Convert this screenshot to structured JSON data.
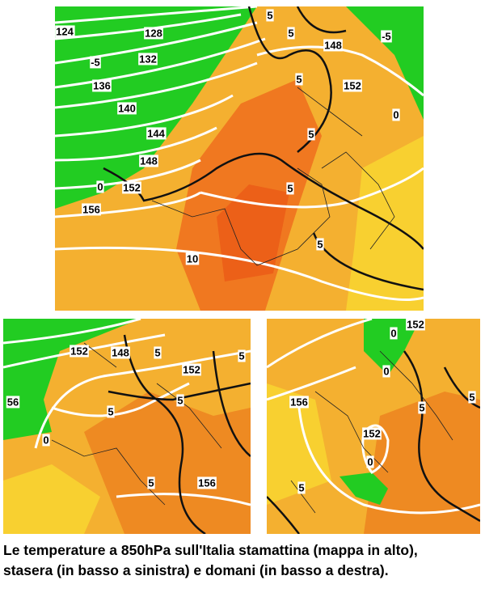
{
  "maps": [
    {
      "labels": [
        "124",
        "128",
        "132",
        "136",
        "140",
        "144",
        "148",
        "152",
        "156",
        "148",
        "152",
        "5",
        "5",
        "5",
        "5",
        "5",
        "5",
        "0",
        "0",
        "10",
        "-5",
        "-5"
      ]
    },
    {
      "labels": [
        "152",
        "148",
        "152",
        "56",
        "5",
        "5",
        "5",
        "5",
        "5",
        "156",
        "0"
      ]
    },
    {
      "labels": [
        "152",
        "156",
        "152",
        "0",
        "0",
        "0",
        "5",
        "5",
        "5"
      ]
    }
  ],
  "caption": "Le temperature a 850hPa sull'Italia stamattina (mappa in alto), stasera (in basso a sinistra) e domani (in basso a destra)."
}
